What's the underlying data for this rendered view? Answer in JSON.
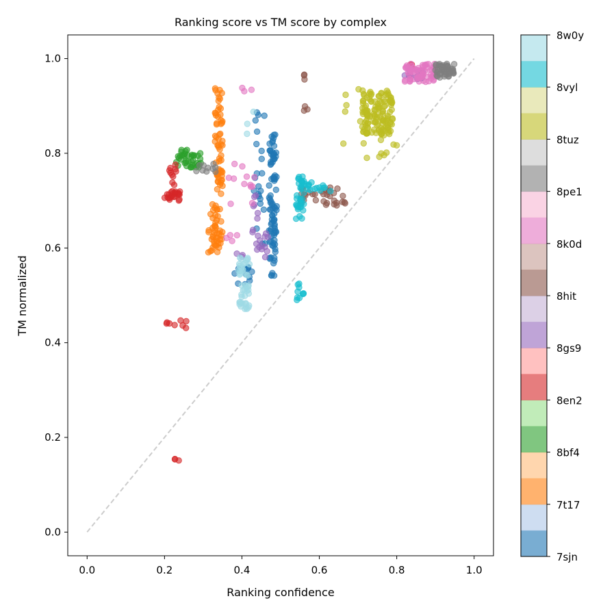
{
  "chart_data": {
    "type": "scatter",
    "title": "Ranking score vs TM score by complex",
    "xlabel": "Ranking confidence",
    "ylabel": "TM normalized",
    "xlim": [
      -0.05,
      1.05
    ],
    "ylim": [
      -0.05,
      1.05
    ],
    "x_ticks": [
      "0.0",
      "0.2",
      "0.4",
      "0.6",
      "0.8",
      "1.0"
    ],
    "y_ticks": [
      "0.0",
      "0.2",
      "0.4",
      "0.6",
      "0.8",
      "1.0"
    ],
    "grid": false,
    "reference_line": {
      "style": "dashed",
      "color": "#cccccc",
      "from": [
        0,
        0
      ],
      "to": [
        1,
        1
      ]
    },
    "colorbar": {
      "palette": "tab20",
      "ticks": [
        "7sjn",
        "7t17",
        "8bf4",
        "8en2",
        "8gs9",
        "8hit",
        "8k0d",
        "8pe1",
        "8tuz",
        "8vyl",
        "8w0y"
      ],
      "colors": [
        "#1f77b4",
        "#aec7e8",
        "#ff7f0e",
        "#ffbb78",
        "#2ca02c",
        "#98df8a",
        "#d62728",
        "#ff9896",
        "#9467bd",
        "#c5b0d5",
        "#8c564b",
        "#c49c94",
        "#e377c2",
        "#f7b6d2",
        "#7f7f7f",
        "#c7c7c7",
        "#bcbd22",
        "#dbdb8d",
        "#17becf",
        "#9edae5"
      ]
    },
    "series": [
      {
        "color": "#1f77b4",
        "clusters": [
          {
            "x": [
              0.47,
              0.49
            ],
            "y": [
              0.54,
              0.84
            ],
            "n": 90
          },
          {
            "x": [
              0.43,
              0.46
            ],
            "y": [
              0.6,
              0.9
            ],
            "n": 22
          },
          {
            "x": [
              0.38,
              0.43
            ],
            "y": [
              0.52,
              0.56
            ],
            "n": 14
          },
          {
            "x": [
              0.85,
              0.87
            ],
            "y": [
              0.955,
              0.975
            ],
            "n": 10
          }
        ]
      },
      {
        "color": "#ff7f0e",
        "clusters": [
          {
            "x": [
              0.33,
              0.35
            ],
            "y": [
              0.59,
              0.94
            ],
            "n": 90
          },
          {
            "x": [
              0.31,
              0.33
            ],
            "y": [
              0.59,
              0.7
            ],
            "n": 18
          }
        ]
      },
      {
        "color": "#2ca02c",
        "clusters": [
          {
            "x": [
              0.23,
              0.3
            ],
            "y": [
              0.77,
              0.8
            ],
            "n": 35
          },
          {
            "x": [
              0.24,
              0.26
            ],
            "y": [
              0.8,
              0.82
            ],
            "n": 4
          }
        ]
      },
      {
        "color": "#d62728",
        "clusters": [
          {
            "x": [
              0.2,
              0.24
            ],
            "y": [
              0.7,
              0.72
            ],
            "n": 25
          },
          {
            "x": [
              0.21,
              0.23
            ],
            "y": [
              0.73,
              0.78
            ],
            "n": 10
          },
          {
            "x": [
              0.2,
              0.26
            ],
            "y": [
              0.43,
              0.45
            ],
            "n": 8
          },
          {
            "x": [
              0.22,
              0.24
            ],
            "y": [
              0.15,
              0.16
            ],
            "n": 3
          },
          {
            "x": [
              0.83,
              0.84
            ],
            "y": [
              0.98,
              0.99
            ],
            "n": 3
          }
        ]
      },
      {
        "color": "#9467bd",
        "clusters": [
          {
            "x": [
              0.38,
              0.47
            ],
            "y": [
              0.58,
              0.64
            ],
            "n": 18
          },
          {
            "x": [
              0.43,
              0.45
            ],
            "y": [
              0.66,
              0.72
            ],
            "n": 6
          },
          {
            "x": [
              0.82,
              0.85
            ],
            "y": [
              0.96,
              0.98
            ],
            "n": 6
          }
        ]
      },
      {
        "color": "#8c564b",
        "clusters": [
          {
            "x": [
              0.55,
              0.68
            ],
            "y": [
              0.69,
              0.73
            ],
            "n": 35
          },
          {
            "x": [
              0.56,
              0.57
            ],
            "y": [
              0.95,
              0.97
            ],
            "n": 3
          },
          {
            "x": [
              0.56,
              0.57
            ],
            "y": [
              0.89,
              0.9
            ],
            "n": 3
          }
        ]
      },
      {
        "color": "#e377c2",
        "clusters": [
          {
            "x": [
              0.82,
              0.9
            ],
            "y": [
              0.95,
              0.99
            ],
            "n": 70
          },
          {
            "x": [
              0.36,
              0.46
            ],
            "y": [
              0.69,
              0.78
            ],
            "n": 12
          },
          {
            "x": [
              0.4,
              0.43
            ],
            "y": [
              0.92,
              0.95
            ],
            "n": 3
          },
          {
            "x": [
              0.36,
              0.39
            ],
            "y": [
              0.61,
              0.63
            ],
            "n": 4
          }
        ]
      },
      {
        "color": "#7f7f7f",
        "clusters": [
          {
            "x": [
              0.9,
              0.95
            ],
            "y": [
              0.96,
              0.99
            ],
            "n": 50
          },
          {
            "x": [
              0.27,
              0.34
            ],
            "y": [
              0.76,
              0.78
            ],
            "n": 10
          }
        ]
      },
      {
        "color": "#bcbd22",
        "clusters": [
          {
            "x": [
              0.71,
              0.79
            ],
            "y": [
              0.84,
              0.93
            ],
            "n": 120
          },
          {
            "x": [
              0.65,
              0.8
            ],
            "y": [
              0.79,
              0.95
            ],
            "n": 30
          }
        ]
      },
      {
        "color": "#17becf",
        "clusters": [
          {
            "x": [
              0.54,
              0.56
            ],
            "y": [
              0.66,
              0.76
            ],
            "n": 35
          },
          {
            "x": [
              0.55,
              0.63
            ],
            "y": [
              0.72,
              0.74
            ],
            "n": 15
          },
          {
            "x": [
              0.54,
              0.56
            ],
            "y": [
              0.49,
              0.53
            ],
            "n": 10
          }
        ]
      },
      {
        "color": "#9edae5",
        "clusters": [
          {
            "x": [
              0.39,
              0.42
            ],
            "y": [
              0.47,
              0.58
            ],
            "n": 45
          },
          {
            "x": [
              0.4,
              0.44
            ],
            "y": [
              0.84,
              0.89
            ],
            "n": 3
          }
        ]
      }
    ]
  }
}
